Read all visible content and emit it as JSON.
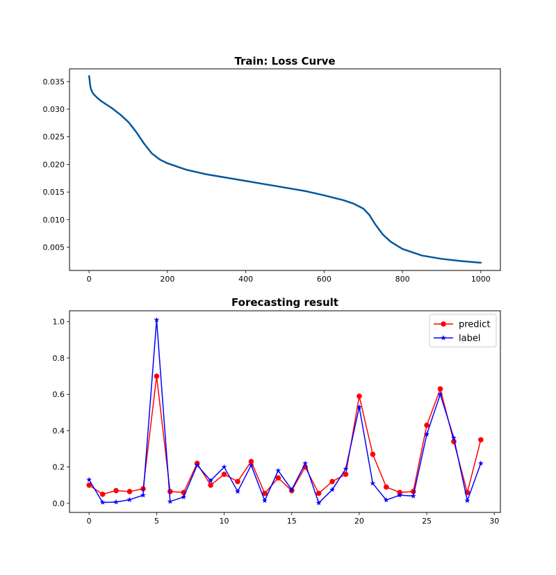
{
  "chart_data": [
    {
      "type": "line",
      "title": "Train: Loss Curve",
      "xlabel": "",
      "ylabel": "",
      "xlim": [
        -50,
        1050
      ],
      "ylim": [
        0.0008,
        0.0373
      ],
      "xticks": [
        0,
        200,
        400,
        600,
        800,
        1000
      ],
      "xtick_labels": [
        "0",
        "200",
        "400",
        "600",
        "800",
        "1000"
      ],
      "yticks": [
        0.005,
        0.01,
        0.015,
        0.02,
        0.025,
        0.03,
        0.035
      ],
      "ytick_labels": [
        "0.005",
        "0.010",
        "0.015",
        "0.020",
        "0.025",
        "0.030",
        "0.035"
      ],
      "grid": false,
      "series": [
        {
          "color": "#00579c",
          "x": [
            0,
            1,
            2,
            3,
            5,
            8,
            12,
            20,
            30,
            45,
            60,
            80,
            100,
            120,
            140,
            160,
            180,
            200,
            225,
            250,
            275,
            300,
            350,
            400,
            450,
            500,
            550,
            600,
            650,
            675,
            700,
            715,
            730,
            750,
            770,
            800,
            850,
            900,
            950,
            1000
          ],
          "y": [
            0.036,
            0.0355,
            0.0348,
            0.0342,
            0.0336,
            0.0331,
            0.0327,
            0.0321,
            0.0315,
            0.0308,
            0.0301,
            0.029,
            0.0277,
            0.0259,
            0.0238,
            0.022,
            0.0209,
            0.0202,
            0.0196,
            0.019,
            0.0186,
            0.0182,
            0.0176,
            0.017,
            0.0164,
            0.0158,
            0.0152,
            0.0144,
            0.0135,
            0.0129,
            0.012,
            0.0109,
            0.0092,
            0.0073,
            0.006,
            0.0047,
            0.0035,
            0.0029,
            0.0025,
            0.0022
          ]
        }
      ]
    },
    {
      "type": "line",
      "title": "Forecasting result",
      "xlabel": "",
      "ylabel": "",
      "xlim": [
        -1.45,
        30.45
      ],
      "ylim": [
        -0.05,
        1.06
      ],
      "xticks": [
        0,
        5,
        10,
        15,
        20,
        25,
        30
      ],
      "xtick_labels": [
        "0",
        "5",
        "10",
        "15",
        "20",
        "25",
        "30"
      ],
      "yticks": [
        0.0,
        0.2,
        0.4,
        0.6,
        0.8,
        1.0
      ],
      "ytick_labels": [
        "0.0",
        "0.2",
        "0.4",
        "0.6",
        "0.8",
        "1.0"
      ],
      "grid": false,
      "legend": "top-right",
      "x": [
        0,
        1,
        2,
        3,
        4,
        5,
        6,
        7,
        8,
        9,
        10,
        11,
        12,
        13,
        14,
        15,
        16,
        17,
        18,
        19,
        20,
        21,
        22,
        23,
        24,
        25,
        26,
        27,
        28,
        29
      ],
      "series": [
        {
          "name": "predict",
          "color": "#ff0000",
          "marker": "circle",
          "values": [
            0.1,
            0.05,
            0.07,
            0.065,
            0.08,
            0.7,
            0.065,
            0.06,
            0.22,
            0.1,
            0.16,
            0.12,
            0.23,
            0.055,
            0.14,
            0.07,
            0.2,
            0.055,
            0.12,
            0.16,
            0.59,
            0.27,
            0.09,
            0.06,
            0.065,
            0.43,
            0.63,
            0.34,
            0.06,
            0.35
          ]
        },
        {
          "name": "label",
          "color": "#0000ff",
          "marker": "star",
          "values": [
            0.13,
            0.005,
            0.007,
            0.02,
            0.045,
            1.01,
            0.01,
            0.035,
            0.21,
            0.125,
            0.2,
            0.065,
            0.21,
            0.015,
            0.18,
            0.075,
            0.22,
            0.002,
            0.075,
            0.19,
            0.53,
            0.11,
            0.018,
            0.045,
            0.04,
            0.38,
            0.6,
            0.36,
            0.015,
            0.22
          ]
        }
      ]
    }
  ]
}
